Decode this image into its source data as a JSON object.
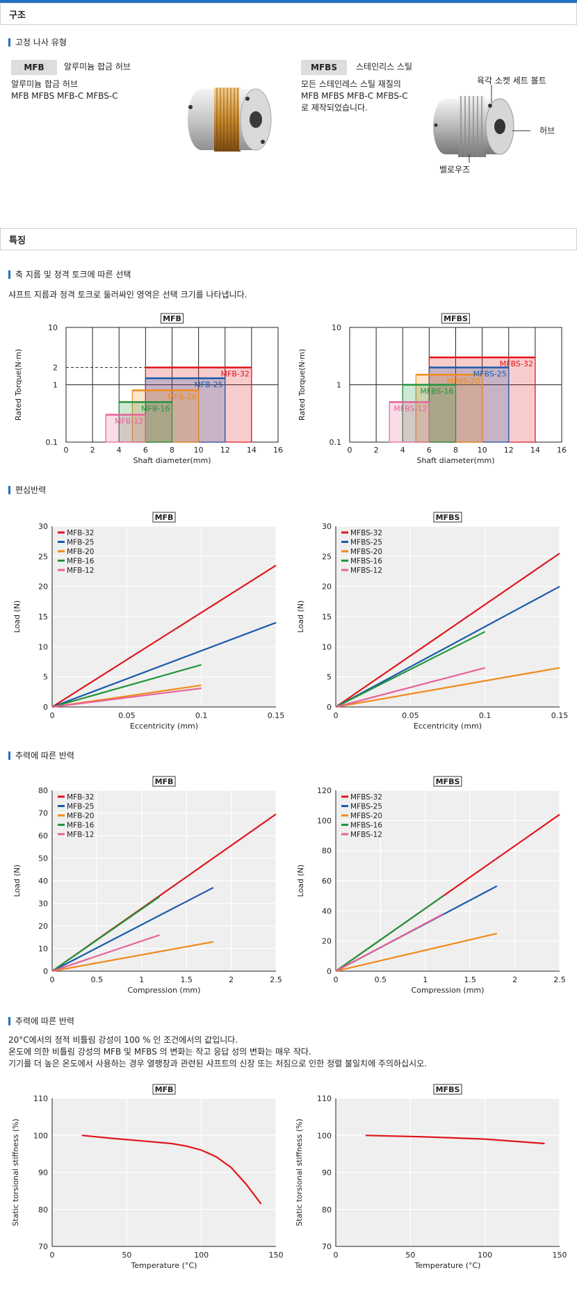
{
  "sections": {
    "structure": "구조",
    "fixing_type": "고정 나사 유형",
    "features": "특징",
    "selection": "축 지름 및 정격 토크에 따른 선택",
    "selection_note": "샤프트 지름과 정격 토크로 둘러싸인 영역은 선택 크기를 나타냅니다.",
    "eccentric": "편심반력",
    "thrust": "추력에 따른 반력",
    "temp": "추력에 따른 반력",
    "temp_note1": "20°C에서의 정적 비틀림 강성이 100 % 인 조건에서의 값입니다.",
    "temp_note2": "온도에 의한 비틀림 강성의 MFB 및 MFBS 의 변화는 작고 응답 성의 변화는 매우 작다.",
    "temp_note3": "기기를 더 높은 온도에서 사용하는 경우 열팽창과 관련된 샤프트의 신장 또는 처짐으로 인한 정렬 불일치에 주의하십시오."
  },
  "products": {
    "mfb": {
      "badge": "MFB",
      "name": "알루미늄 합금 허브",
      "desc1": "알루미늄 합금 허브",
      "desc2": "MFB  MFBS  MFB-C  MFBS-C"
    },
    "mfbs": {
      "badge": "MFBS",
      "name": "스테인리스 스틸",
      "desc1": "모든 스테인레스 스틸 재질의",
      "desc2": "MFB  MFBS  MFB-C  MFBS-C",
      "desc3": "로 제작되었습니다.",
      "label_bolt": "육각 소켓 세트 볼트",
      "label_hub": "허브",
      "label_bellows": "벨로우즈"
    }
  },
  "colors": {
    "32": "#e0161c",
    "25": "#1a5aaa",
    "20": "#f08a1a",
    "16": "#22953a",
    "12": "#e8609a"
  },
  "chart_data": [
    {
      "id": "sel_mfb",
      "type": "bar",
      "title": "MFB",
      "xlabel": "Shaft diameter(mm)",
      "ylabel": "Rated Torque(N·m)",
      "xlim": [
        0,
        16
      ],
      "ylim": [
        0.1,
        10
      ],
      "yscale": "log",
      "x_ticks": [
        "0",
        "2",
        "4",
        "6",
        "8",
        "10",
        "12",
        "14",
        "16"
      ],
      "y_ticks": [
        "0.1",
        "1",
        "2",
        "10"
      ],
      "regions": [
        {
          "name": "MFB-12",
          "x": [
            3,
            6
          ],
          "torque": 0.3
        },
        {
          "name": "MFB-16",
          "x": [
            4,
            8
          ],
          "torque": 0.5
        },
        {
          "name": "MFB-20",
          "x": [
            5,
            10
          ],
          "torque": 0.8
        },
        {
          "name": "MFB-25",
          "x": [
            6,
            12
          ],
          "torque": 1.3
        },
        {
          "name": "MFB-32",
          "x": [
            6,
            14
          ],
          "torque": 2
        }
      ]
    },
    {
      "id": "sel_mfbs",
      "type": "bar",
      "title": "MFBS",
      "xlabel": "Shaft diameter(mm)",
      "ylabel": "Rated Torque(N·m)",
      "xlim": [
        0,
        16
      ],
      "ylim": [
        0.1,
        10
      ],
      "yscale": "log",
      "x_ticks": [
        "0",
        "2",
        "4",
        "6",
        "8",
        "10",
        "12",
        "14",
        "16"
      ],
      "y_ticks": [
        "0.1",
        "1",
        "10"
      ],
      "regions": [
        {
          "name": "MFBS-12",
          "x": [
            3,
            6
          ],
          "torque": 0.5
        },
        {
          "name": "MFBS-16",
          "x": [
            4,
            8
          ],
          "torque": 1
        },
        {
          "name": "MFBS-20",
          "x": [
            5,
            10
          ],
          "torque": 1.5
        },
        {
          "name": "MFBS-25",
          "x": [
            6,
            12
          ],
          "torque": 2
        },
        {
          "name": "MFBS-32",
          "x": [
            6,
            14
          ],
          "torque": 3
        }
      ]
    },
    {
      "id": "ecc_mfb",
      "type": "line",
      "title": "MFB",
      "xlabel": "Eccentricity (mm)",
      "ylabel": "Load (N)",
      "xlim": [
        0,
        0.15
      ],
      "ylim": [
        0,
        30
      ],
      "x_ticks": [
        "0",
        "0.05",
        "0.1",
        "0.15"
      ],
      "y_ticks": [
        "0",
        "5",
        "10",
        "15",
        "20",
        "25",
        "30"
      ],
      "series": [
        {
          "name": "MFB-32",
          "x": [
            0,
            0.15
          ],
          "y": [
            0,
            23.5
          ]
        },
        {
          "name": "MFB-25",
          "x": [
            0,
            0.15
          ],
          "y": [
            0,
            14
          ]
        },
        {
          "name": "MFB-20",
          "x": [
            0,
            0.1
          ],
          "y": [
            0,
            3.6
          ]
        },
        {
          "name": "MFB-16",
          "x": [
            0,
            0.1
          ],
          "y": [
            0,
            7
          ]
        },
        {
          "name": "MFB-12",
          "x": [
            0,
            0.1
          ],
          "y": [
            0,
            3.1
          ]
        }
      ]
    },
    {
      "id": "ecc_mfbs",
      "type": "line",
      "title": "MFBS",
      "xlabel": "Eccentricity (mm)",
      "ylabel": "Load (N)",
      "xlim": [
        0,
        0.15
      ],
      "ylim": [
        0,
        30
      ],
      "x_ticks": [
        "0",
        "0.05",
        "0.1",
        "0.15"
      ],
      "y_ticks": [
        "0",
        "5",
        "10",
        "15",
        "20",
        "25",
        "30"
      ],
      "series": [
        {
          "name": "MFBS-32",
          "x": [
            0,
            0.15
          ],
          "y": [
            0,
            25.5
          ]
        },
        {
          "name": "MFBS-25",
          "x": [
            0,
            0.15
          ],
          "y": [
            0,
            20
          ]
        },
        {
          "name": "MFBS-20",
          "x": [
            0,
            0.15
          ],
          "y": [
            0,
            6.5
          ]
        },
        {
          "name": "MFBS-16",
          "x": [
            0,
            0.1
          ],
          "y": [
            0,
            12.5
          ]
        },
        {
          "name": "MFBS-12",
          "x": [
            0,
            0.1
          ],
          "y": [
            0,
            6.5
          ]
        }
      ]
    },
    {
      "id": "thr_mfb",
      "type": "line",
      "title": "MFB",
      "xlabel": "Compression (mm)",
      "ylabel": "Load (N)",
      "xlim": [
        0,
        2.5
      ],
      "ylim": [
        0,
        80
      ],
      "x_ticks": [
        "0",
        "0.5",
        "1",
        "1.5",
        "2",
        "2.5"
      ],
      "y_ticks": [
        "0",
        "10",
        "20",
        "30",
        "40",
        "50",
        "60",
        "70",
        "80"
      ],
      "series": [
        {
          "name": "MFB-32",
          "x": [
            0,
            2.5
          ],
          "y": [
            0,
            69.5
          ]
        },
        {
          "name": "MFB-25",
          "x": [
            0,
            1.8
          ],
          "y": [
            0,
            37
          ]
        },
        {
          "name": "MFB-20",
          "x": [
            0,
            1.8
          ],
          "y": [
            0,
            13
          ]
        },
        {
          "name": "MFB-16",
          "x": [
            0,
            1.2
          ],
          "y": [
            0,
            33
          ]
        },
        {
          "name": "MFB-12",
          "x": [
            0,
            1.2
          ],
          "y": [
            0,
            16
          ]
        }
      ]
    },
    {
      "id": "thr_mfbs",
      "type": "line",
      "title": "MFBS",
      "xlabel": "Compression (mm)",
      "ylabel": "Load (N)",
      "xlim": [
        0,
        2.5
      ],
      "ylim": [
        0,
        120
      ],
      "x_ticks": [
        "0",
        "0.5",
        "1",
        "1.5",
        "2",
        "2.5"
      ],
      "y_ticks": [
        "0",
        "20",
        "40",
        "60",
        "80",
        "100",
        "120"
      ],
      "series": [
        {
          "name": "MFBS-32",
          "x": [
            0,
            2.5
          ],
          "y": [
            0,
            104
          ]
        },
        {
          "name": "MFBS-25",
          "x": [
            0,
            1.8
          ],
          "y": [
            0,
            56.5
          ]
        },
        {
          "name": "MFBS-20",
          "x": [
            0,
            1.8
          ],
          "y": [
            0,
            25
          ]
        },
        {
          "name": "MFBS-16",
          "x": [
            0,
            1.2
          ],
          "y": [
            0,
            50
          ]
        },
        {
          "name": "MFBS-12",
          "x": [
            0,
            1.2
          ],
          "y": [
            0,
            38
          ]
        }
      ]
    },
    {
      "id": "tmp_mfb",
      "type": "line",
      "title": "MFB",
      "xlabel": "Temperature (°C)",
      "ylabel": "Static torsional stiffness (%)",
      "xlim": [
        0,
        150
      ],
      "ylim": [
        70,
        110
      ],
      "x_ticks": [
        "0",
        "50",
        "100",
        "150"
      ],
      "y_ticks": [
        "70",
        "80",
        "90",
        "100",
        "110"
      ],
      "series": [
        {
          "name": "",
          "x": [
            20,
            40,
            60,
            80,
            90,
            100,
            110,
            120,
            130,
            140
          ],
          "y": [
            100,
            99.2,
            98.5,
            97.8,
            97.1,
            96.0,
            94.2,
            91.3,
            86.8,
            81.5
          ]
        }
      ]
    },
    {
      "id": "tmp_mfbs",
      "type": "line",
      "title": "MFBS",
      "xlabel": "Temperature (°C)",
      "ylabel": "Static torsional stiffness (%)",
      "xlim": [
        0,
        150
      ],
      "ylim": [
        70,
        110
      ],
      "x_ticks": [
        "0",
        "50",
        "100",
        "150"
      ],
      "y_ticks": [
        "70",
        "80",
        "90",
        "100",
        "110"
      ],
      "series": [
        {
          "name": "",
          "x": [
            20,
            60,
            100,
            140
          ],
          "y": [
            100,
            99.6,
            99,
            97.8
          ]
        }
      ]
    }
  ]
}
